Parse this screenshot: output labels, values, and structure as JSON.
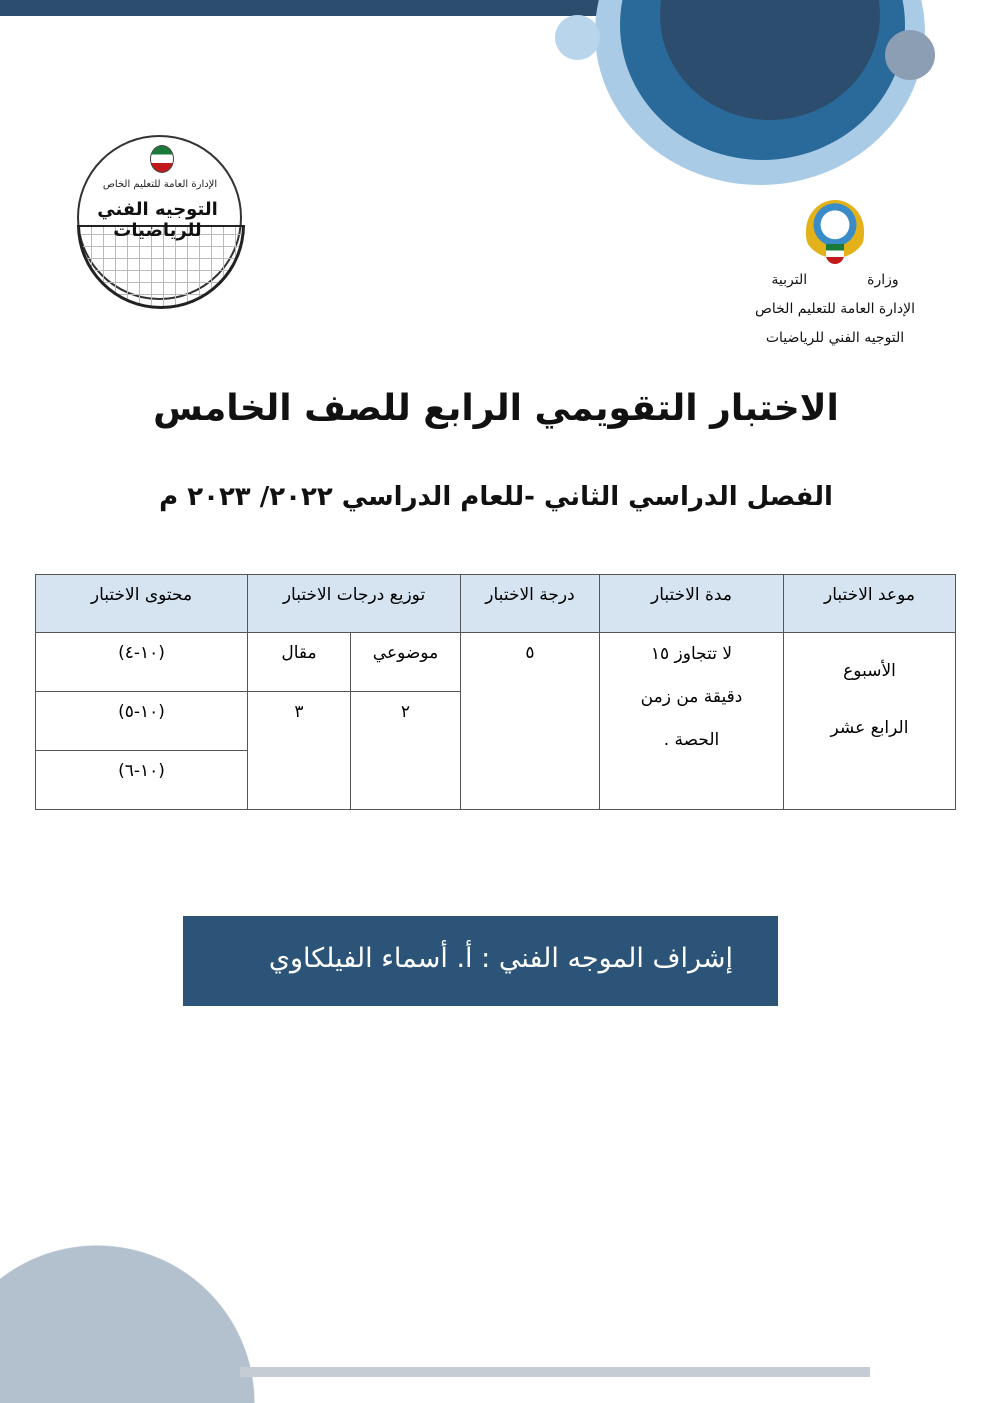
{
  "ministry": {
    "word1": "وزارة",
    "word2": "التربية",
    "line2": "الإدارة العامة للتعليم الخاص",
    "line3": "التوجيه الفني للرياضيات"
  },
  "logo": {
    "line1": "الإدارة العامة للتعليم الخاص",
    "line2": "التوجيه الفني للرياضيات"
  },
  "title": "الاختبار التقويمي الرابع للصف الخامس",
  "subtitle": "الفصل الدراسي الثاني -للعام الدراسي ٢٠٢٢/ ٢٠٢٣ م",
  "table": {
    "headers": [
      "موعد الاختبار",
      "مدة الاختبار",
      "درجة الاختبار",
      "توزيع درجات الاختبار",
      "محتوى الاختبار"
    ],
    "schedule": [
      "الأسبوع",
      "الرابع عشر"
    ],
    "duration": [
      "لا تتجاوز ١٥",
      "دقيقة من زمن",
      "الحصة ."
    ],
    "grade": "٥",
    "dist_labels": [
      "موضوعي",
      "مقال"
    ],
    "dist_values": [
      "٢",
      "٣"
    ],
    "content": [
      "(١٠-٤)",
      "(١٠-٥)",
      "(١٠-٦)"
    ]
  },
  "banner": "إشراف الموجه الفني : أ. أسماء الفيلكاوي",
  "colors": {
    "dark_blue": "#2c4d6e",
    "banner": "#2c5478",
    "header_fill": "#d6e3f0"
  }
}
